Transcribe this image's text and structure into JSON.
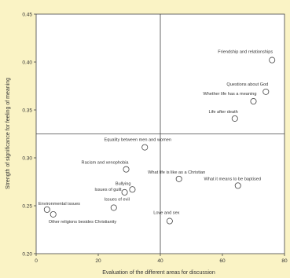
{
  "chart_data": {
    "type": "scatter",
    "title": "",
    "xlabel": "Evaluation of the different areas for discussion",
    "ylabel": "Strength of significance for feeling of meaning",
    "xlim": [
      0,
      80
    ],
    "ylim": [
      0.2,
      0.45
    ],
    "x_ticks": [
      "0",
      "20",
      "40",
      "60",
      "80"
    ],
    "y_ticks": [
      "0.20",
      "0.25",
      "0.30",
      "0.35",
      "0.40",
      "0.45"
    ],
    "grid": false,
    "reference_lines": {
      "x": 40,
      "y": 0.325
    },
    "marker": "open-circle",
    "points": [
      {
        "label": "Friendship and relationships",
        "x": 76.0,
        "y": 0.402
      },
      {
        "label": "Questions about God",
        "x": 74.0,
        "y": 0.369
      },
      {
        "label": "Whether life has a meaning",
        "x": 70.0,
        "y": 0.359
      },
      {
        "label": "Life after death",
        "x": 64.0,
        "y": 0.341
      },
      {
        "label": "Equality between men and women",
        "x": 35.0,
        "y": 0.311
      },
      {
        "label": "Racism and xenophobia",
        "x": 29.0,
        "y": 0.288
      },
      {
        "label": "What life is like as a Christian",
        "x": 46.0,
        "y": 0.278
      },
      {
        "label": "What it means to be baptised",
        "x": 65.0,
        "y": 0.271
      },
      {
        "label": "Bullying",
        "x": 31.0,
        "y": 0.267
      },
      {
        "label": "Issues of guilt",
        "x": 28.5,
        "y": 0.264
      },
      {
        "label": "Issues of evil",
        "x": 25.0,
        "y": 0.248
      },
      {
        "label": "Environmental issues",
        "x": 3.5,
        "y": 0.246
      },
      {
        "label": "Other religions besides Christianity",
        "x": 5.5,
        "y": 0.241
      },
      {
        "label": "Love and sex",
        "x": 43.0,
        "y": 0.234
      }
    ]
  }
}
